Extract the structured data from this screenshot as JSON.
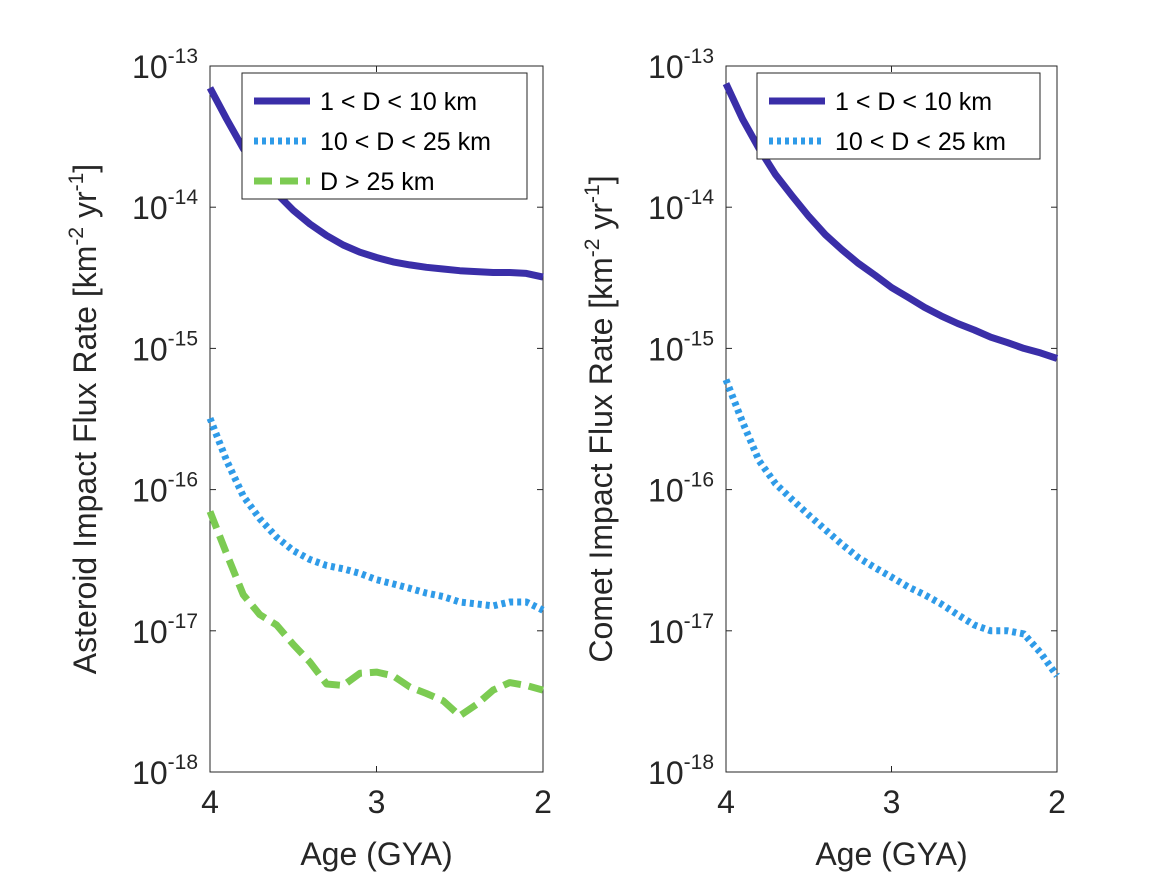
{
  "chart_data": [
    {
      "type": "line",
      "title": "",
      "xlabel": "Age (GYA)",
      "ylabel_main": "Asteroid Impact Flux Rate [km",
      "ylabel_sup1": "-2",
      "ylabel_mid": " yr",
      "ylabel_sup2": "-1",
      "ylabel_end": "]",
      "yscale": "log",
      "xlim": [
        4,
        2
      ],
      "ylim": [
        1e-18,
        1e-13
      ],
      "xticks": [
        "4",
        "3",
        "2"
      ],
      "yticks": [
        {
          "base": "10",
          "exp": "-18"
        },
        {
          "base": "10",
          "exp": "-17"
        },
        {
          "base": "10",
          "exp": "-16"
        },
        {
          "base": "10",
          "exp": "-15"
        },
        {
          "base": "10",
          "exp": "-14"
        },
        {
          "base": "10",
          "exp": "-13"
        }
      ],
      "legend_position": "top-right",
      "series": [
        {
          "name": "1 < D < 10 km",
          "color": "#3a2ea8",
          "style": "solid",
          "x": [
            4.0,
            3.9,
            3.8,
            3.7,
            3.6,
            3.5,
            3.4,
            3.3,
            3.2,
            3.1,
            3.0,
            2.9,
            2.8,
            2.7,
            2.6,
            2.5,
            2.4,
            2.3,
            2.2,
            2.1,
            2.0
          ],
          "y": [
            7e-14,
            4.2e-14,
            2.6e-14,
            1.75e-14,
            1.25e-14,
            9.5e-15,
            7.6e-15,
            6.3e-15,
            5.4e-15,
            4.8e-15,
            4.4e-15,
            4.1e-15,
            3.9e-15,
            3.75e-15,
            3.65e-15,
            3.55e-15,
            3.5e-15,
            3.45e-15,
            3.45e-15,
            3.4e-15,
            3.2e-15
          ]
        },
        {
          "name": "10 < D < 25 km",
          "color": "#2f9be8",
          "style": "dotted",
          "x": [
            4.0,
            3.9,
            3.8,
            3.7,
            3.6,
            3.5,
            3.4,
            3.3,
            3.2,
            3.1,
            3.0,
            2.9,
            2.8,
            2.7,
            2.6,
            2.5,
            2.4,
            2.3,
            2.2,
            2.1,
            2.0
          ],
          "y": [
            3.2e-16,
            1.6e-16,
            9e-17,
            6.2e-17,
            4.6e-17,
            3.7e-17,
            3.2e-17,
            2.9e-17,
            2.75e-17,
            2.55e-17,
            2.3e-17,
            2.15e-17,
            2e-17,
            1.85e-17,
            1.75e-17,
            1.6e-17,
            1.55e-17,
            1.5e-17,
            1.6e-17,
            1.6e-17,
            1.4e-17
          ]
        },
        {
          "name": "D > 25 km",
          "color": "#7ccb52",
          "style": "dashed",
          "x": [
            4.0,
            3.9,
            3.8,
            3.7,
            3.6,
            3.5,
            3.4,
            3.3,
            3.2,
            3.1,
            3.0,
            2.9,
            2.8,
            2.7,
            2.6,
            2.5,
            2.4,
            2.3,
            2.2,
            2.1,
            2.0
          ],
          "y": [
            7e-17,
            3.5e-17,
            1.8e-17,
            1.3e-17,
            1.1e-17,
            8e-18,
            6e-18,
            4.2e-18,
            4.1e-18,
            5e-18,
            5.1e-18,
            4.8e-18,
            4e-18,
            3.6e-18,
            3.2e-18,
            2.5e-18,
            3e-18,
            3.8e-18,
            4.3e-18,
            4.1e-18,
            3.8e-18
          ]
        }
      ]
    },
    {
      "type": "line",
      "title": "",
      "xlabel": "Age (GYA)",
      "ylabel_main": "Comet Impact Flux Rate [km",
      "ylabel_sup1": "-2",
      "ylabel_mid": " yr",
      "ylabel_sup2": "-1",
      "ylabel_end": "]",
      "yscale": "log",
      "xlim": [
        4,
        2
      ],
      "ylim": [
        1e-18,
        1e-13
      ],
      "xticks": [
        "4",
        "3",
        "2"
      ],
      "yticks": [
        {
          "base": "10",
          "exp": "-18"
        },
        {
          "base": "10",
          "exp": "-17"
        },
        {
          "base": "10",
          "exp": "-16"
        },
        {
          "base": "10",
          "exp": "-15"
        },
        {
          "base": "10",
          "exp": "-14"
        },
        {
          "base": "10",
          "exp": "-13"
        }
      ],
      "legend_position": "top-right",
      "series": [
        {
          "name": "1 < D < 10 km",
          "color": "#3a2ea8",
          "style": "solid",
          "x": [
            4.0,
            3.9,
            3.8,
            3.7,
            3.6,
            3.5,
            3.4,
            3.3,
            3.2,
            3.1,
            3.0,
            2.9,
            2.8,
            2.7,
            2.6,
            2.5,
            2.4,
            2.3,
            2.2,
            2.1,
            2.0
          ],
          "y": [
            7.5e-14,
            4.2e-14,
            2.6e-14,
            1.7e-14,
            1.2e-14,
            8.6e-15,
            6.4e-15,
            5e-15,
            4e-15,
            3.3e-15,
            2.7e-15,
            2.3e-15,
            1.95e-15,
            1.7e-15,
            1.5e-15,
            1.35e-15,
            1.2e-15,
            1.1e-15,
            1e-15,
            9.3e-16,
            8.5e-16
          ]
        },
        {
          "name": "10 < D < 25 km",
          "color": "#2f9be8",
          "style": "dotted",
          "x": [
            4.0,
            3.9,
            3.8,
            3.7,
            3.6,
            3.5,
            3.4,
            3.3,
            3.2,
            3.1,
            3.0,
            2.9,
            2.8,
            2.7,
            2.6,
            2.5,
            2.4,
            2.3,
            2.2,
            2.1,
            2.0
          ],
          "y": [
            6e-16,
            3e-16,
            1.6e-16,
            1.1e-16,
            8.5e-17,
            6.6e-17,
            5.2e-17,
            4.1e-17,
            3.3e-17,
            2.8e-17,
            2.4e-17,
            2.05e-17,
            1.8e-17,
            1.55e-17,
            1.3e-17,
            1.1e-17,
            1e-17,
            1e-17,
            9.5e-18,
            7e-18,
            4.8e-18
          ]
        }
      ]
    }
  ]
}
